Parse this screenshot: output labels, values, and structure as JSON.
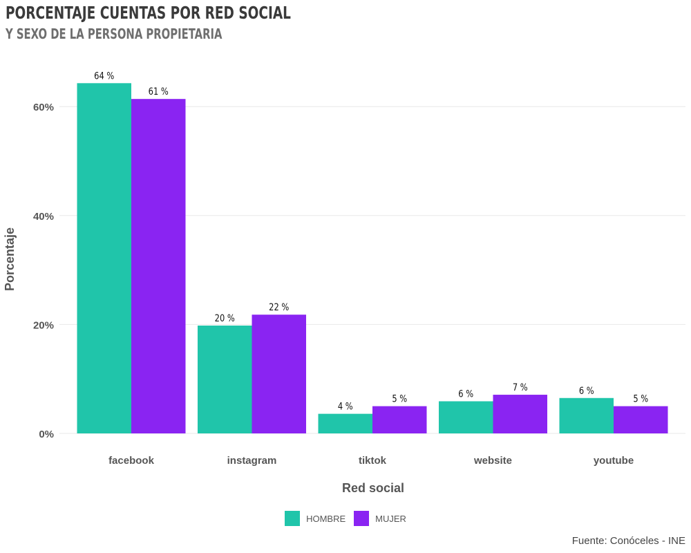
{
  "chart_data": {
    "type": "bar",
    "title": "PORCENTAJE CUENTAS POR RED SOCIAL",
    "subtitle": "Y SEXO DE LA PERSONA PROPIETARIA",
    "xlabel": "Red social",
    "ylabel": "Porcentaje",
    "categories": [
      "facebook",
      "instagram",
      "tiktok",
      "website",
      "youtube"
    ],
    "series": [
      {
        "name": "HOMBRE",
        "color": "#20c5aa",
        "values": [
          64.3,
          19.8,
          3.6,
          5.9,
          6.5
        ],
        "labels": [
          "64 %",
          "20 %",
          "4 %",
          "6 %",
          "6 %"
        ]
      },
      {
        "name": "MUJER",
        "color": "#8a24f2",
        "values": [
          61.4,
          21.8,
          5.0,
          7.1,
          5.0
        ],
        "labels": [
          "61 %",
          "22 %",
          "5 %",
          "7 %",
          "5 %"
        ]
      }
    ],
    "ylim": [
      0,
      66
    ],
    "yticks": [
      0,
      20,
      40,
      60
    ],
    "ytick_labels": [
      "0%",
      "20%",
      "40%",
      "60%"
    ],
    "grid": true,
    "legend_position": "bottom",
    "caption": "Fuente: Conóceles - INE"
  }
}
